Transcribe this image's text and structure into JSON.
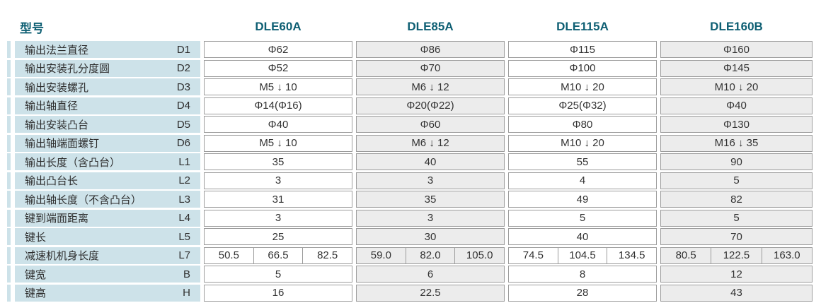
{
  "header": {
    "model_label": "型号",
    "models": [
      "DLE60A",
      "DLE85A",
      "DLE115A",
      "DLE160B"
    ]
  },
  "spec_table": {
    "rows": [
      {
        "label": "输出法兰直径",
        "code": "D1",
        "values": [
          "Φ62",
          "Φ86",
          "Φ115",
          "Φ160"
        ]
      },
      {
        "label": "输出安装孔分度圆",
        "code": "D2",
        "values": [
          "Φ52",
          "Φ70",
          "Φ100",
          "Φ145"
        ]
      },
      {
        "label": "输出安装螺孔",
        "code": "D3",
        "values": [
          "M5 ↓ 10",
          "M6 ↓ 12",
          "M10 ↓ 20",
          "M10 ↓ 20"
        ]
      },
      {
        "label": "输出轴直径",
        "code": "D4",
        "values": [
          "Φ14(Φ16)",
          "Φ20(Φ22)",
          "Φ25(Φ32)",
          "Φ40"
        ]
      },
      {
        "label": "输出安装凸台",
        "code": "D5",
        "values": [
          "Φ40",
          "Φ60",
          "Φ80",
          "Φ130"
        ]
      },
      {
        "label": "输出轴端面螺钉",
        "code": "D6",
        "values": [
          "M5 ↓ 10",
          "M6 ↓ 12",
          "M10 ↓ 20",
          "M16 ↓ 35"
        ]
      },
      {
        "label": "输出长度（含凸台）",
        "code": "L1",
        "values": [
          "35",
          "40",
          "55",
          "90"
        ]
      },
      {
        "label": "输出凸台长",
        "code": "L2",
        "values": [
          "3",
          "3",
          "4",
          "5"
        ]
      },
      {
        "label": "输出轴长度（不含凸台）",
        "code": "L3",
        "values": [
          "31",
          "35",
          "49",
          "82"
        ]
      },
      {
        "label": "键到端面距离",
        "code": "L4",
        "values": [
          "3",
          "3",
          "5",
          "5"
        ]
      },
      {
        "label": "键长",
        "code": "L5",
        "values": [
          "25",
          "30",
          "40",
          "70"
        ]
      },
      {
        "label": "减速机机身长度",
        "code": "L7",
        "values": [
          [
            "50.5",
            "66.5",
            "82.5"
          ],
          [
            "59.0",
            "82.0",
            "105.0"
          ],
          [
            "74.5",
            "104.5",
            "134.5"
          ],
          [
            "80.5",
            "122.5",
            "163.0"
          ]
        ]
      },
      {
        "label": "键宽",
        "code": "B",
        "values": [
          "5",
          "6",
          "8",
          "12"
        ]
      },
      {
        "label": "键高",
        "code": "H",
        "values": [
          "16",
          "22.5",
          "28",
          "43"
        ]
      }
    ]
  },
  "colors": {
    "header_text": "#0e5f73",
    "label_bg": "#cde2e9",
    "col_white": "#ffffff",
    "col_gray": "#ececec",
    "cell_border": "#9c9c9c",
    "body_text": "#333333"
  }
}
